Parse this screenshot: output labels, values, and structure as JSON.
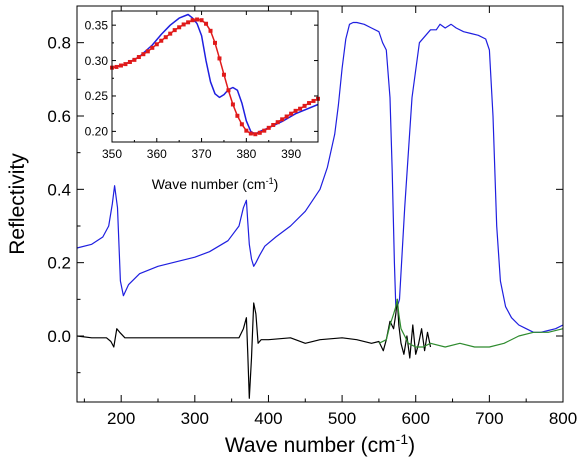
{
  "chart_data": [
    {
      "type": "line",
      "title": "",
      "xlabel": "Wave number (cm",
      "xlabel_sup": "-1",
      "xlabel_end": ")",
      "ylabel": "Reflectivity",
      "xlim": [
        140,
        800
      ],
      "ylim": [
        -0.18,
        0.9
      ],
      "xticks": [
        200,
        300,
        400,
        500,
        600,
        700,
        800
      ],
      "yticks": [
        0.0,
        0.2,
        0.4,
        0.6,
        0.8
      ],
      "ytick_labels": [
        "0.0",
        "0.2",
        "0.4",
        "0.6",
        "0.8"
      ],
      "grid": false,
      "legend": "none",
      "series": [
        {
          "color": "#1f1fe0",
          "x": [
            140,
            160,
            175,
            183,
            188,
            191,
            195,
            199,
            203,
            210,
            225,
            250,
            280,
            300,
            320,
            345,
            360,
            366,
            370,
            372,
            374,
            377,
            380,
            383,
            388,
            395,
            410,
            430,
            450,
            470,
            480,
            490,
            495,
            500,
            505,
            510,
            515,
            520,
            530,
            540,
            550,
            555,
            560,
            565,
            568,
            571,
            573,
            575,
            578,
            585,
            595,
            605,
            620,
            628,
            633,
            640,
            648,
            655,
            665,
            675,
            685,
            695,
            700,
            705,
            710,
            715,
            722,
            730,
            740,
            750,
            760,
            770,
            780,
            790,
            800
          ],
          "y": [
            0.24,
            0.25,
            0.27,
            0.3,
            0.36,
            0.41,
            0.35,
            0.15,
            0.11,
            0.14,
            0.17,
            0.19,
            0.205,
            0.215,
            0.23,
            0.26,
            0.3,
            0.35,
            0.37,
            0.31,
            0.25,
            0.21,
            0.19,
            0.2,
            0.22,
            0.245,
            0.27,
            0.3,
            0.34,
            0.4,
            0.46,
            0.55,
            0.63,
            0.73,
            0.81,
            0.85,
            0.855,
            0.855,
            0.85,
            0.84,
            0.83,
            0.8,
            0.78,
            0.65,
            0.45,
            0.2,
            0.08,
            0.08,
            0.1,
            0.35,
            0.65,
            0.8,
            0.835,
            0.835,
            0.85,
            0.84,
            0.85,
            0.84,
            0.83,
            0.825,
            0.82,
            0.81,
            0.78,
            0.6,
            0.3,
            0.15,
            0.08,
            0.05,
            0.03,
            0.02,
            0.01,
            0.01,
            0.015,
            0.02,
            0.03
          ]
        },
        {
          "color": "#000000",
          "x": [
            140,
            160,
            180,
            186,
            190,
            194,
            198,
            205,
            225,
            260,
            300,
            330,
            350,
            360,
            366,
            370,
            372,
            374,
            377,
            380,
            383,
            386,
            390,
            400,
            430,
            450,
            470,
            500,
            520,
            540,
            550,
            556,
            560,
            565,
            570,
            573,
            575,
            577,
            580,
            584,
            588,
            592,
            596,
            600,
            604,
            608,
            612,
            616,
            620
          ],
          "y": [
            0.0,
            -0.005,
            -0.005,
            -0.015,
            -0.03,
            0.02,
            0.01,
            -0.005,
            -0.005,
            -0.005,
            -0.005,
            -0.005,
            -0.005,
            -0.005,
            0.02,
            0.05,
            -0.05,
            -0.17,
            -0.06,
            0.09,
            0.06,
            -0.02,
            -0.01,
            -0.01,
            -0.005,
            -0.02,
            -0.01,
            -0.005,
            -0.01,
            -0.02,
            -0.015,
            -0.04,
            -0.01,
            0.04,
            0.02,
            0.06,
            0.1,
            0.03,
            -0.02,
            -0.05,
            0.0,
            -0.06,
            0.03,
            -0.05,
            -0.02,
            0.02,
            -0.04,
            0.01,
            -0.03
          ]
        },
        {
          "color": "#2e8b2e",
          "x": [
            550,
            560,
            565,
            570,
            573,
            575,
            577,
            580,
            585,
            590,
            600,
            610,
            620,
            640,
            660,
            680,
            700,
            720,
            740,
            760,
            780,
            800
          ],
          "y": [
            -0.02,
            -0.01,
            0.03,
            0.06,
            0.08,
            0.1,
            0.06,
            0.02,
            0.0,
            -0.02,
            -0.03,
            -0.03,
            -0.02,
            -0.03,
            -0.02,
            -0.03,
            -0.03,
            -0.02,
            0.0,
            0.01,
            0.01,
            0.02
          ]
        }
      ]
    },
    {
      "type": "line",
      "title": "",
      "xlabel": "Wave number (cm",
      "xlabel_sup": "-1",
      "xlabel_end": ")",
      "ylabel": "",
      "xlim": [
        350,
        396
      ],
      "ylim": [
        0.185,
        0.37
      ],
      "xticks": [
        350,
        360,
        370,
        380,
        390
      ],
      "yticks": [
        0.2,
        0.25,
        0.3,
        0.35
      ],
      "ytick_labels": [
        "0.20",
        "0.25",
        "0.30",
        "0.35"
      ],
      "grid": false,
      "legend": "none",
      "series": [
        {
          "color": "#1f1fe0",
          "markers": false,
          "x": [
            350,
            353,
            356,
            359,
            361,
            363,
            365,
            367,
            368,
            369,
            370,
            371,
            372,
            373,
            374,
            375,
            376,
            377,
            378,
            379,
            380,
            381,
            382,
            383,
            385,
            388,
            391,
            396
          ],
          "y": [
            0.29,
            0.295,
            0.305,
            0.322,
            0.337,
            0.35,
            0.36,
            0.365,
            0.36,
            0.352,
            0.335,
            0.3,
            0.27,
            0.253,
            0.248,
            0.252,
            0.259,
            0.262,
            0.258,
            0.24,
            0.215,
            0.2,
            0.196,
            0.2,
            0.205,
            0.214,
            0.225,
            0.238
          ]
        },
        {
          "color": "#e01a1a",
          "markers": true,
          "x": [
            350,
            351,
            352,
            353,
            354,
            355,
            356,
            357,
            358,
            359,
            360,
            361,
            362,
            363,
            364,
            365,
            366,
            367,
            368,
            369,
            370,
            371,
            372,
            373,
            374,
            375,
            376,
            377,
            378,
            379,
            380,
            381,
            382,
            383,
            384,
            385,
            386,
            387,
            388,
            389,
            390,
            391,
            392,
            393,
            394,
            395,
            396
          ],
          "y": [
            0.29,
            0.291,
            0.293,
            0.295,
            0.298,
            0.301,
            0.305,
            0.309,
            0.313,
            0.318,
            0.323,
            0.328,
            0.333,
            0.338,
            0.343,
            0.347,
            0.351,
            0.354,
            0.357,
            0.358,
            0.357,
            0.352,
            0.342,
            0.325,
            0.303,
            0.28,
            0.258,
            0.238,
            0.222,
            0.21,
            0.201,
            0.197,
            0.196,
            0.198,
            0.201,
            0.205,
            0.209,
            0.213,
            0.217,
            0.221,
            0.225,
            0.229,
            0.232,
            0.236,
            0.24,
            0.243,
            0.246
          ]
        }
      ]
    }
  ]
}
